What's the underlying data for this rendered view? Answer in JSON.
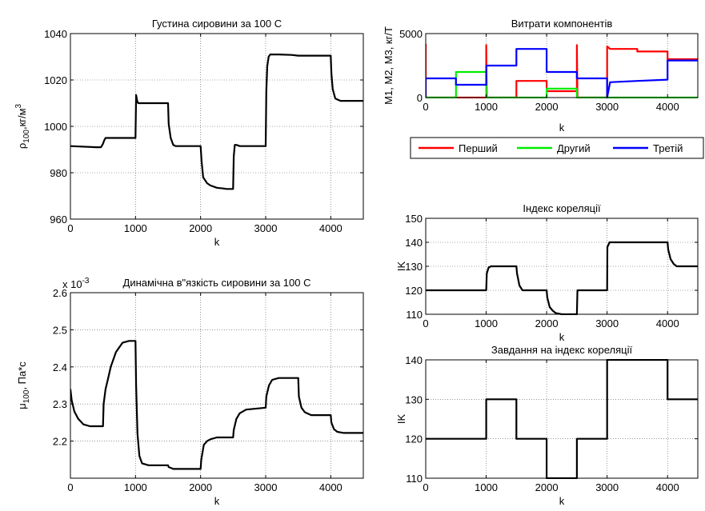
{
  "chart_data": [
    {
      "id": "density",
      "type": "line",
      "title": "Густина сировини за 100 С",
      "xlabel": "k",
      "ylabel": "ρ",
      "ylabel_sub": "100",
      "ylabel_rest": ",кг/м",
      "ylabel_sup": "3",
      "xlim": [
        0,
        4500
      ],
      "ylim": [
        960,
        1040
      ],
      "xticks": [
        0,
        1000,
        2000,
        3000,
        4000
      ],
      "yticks": [
        960,
        980,
        1000,
        1020,
        1040
      ],
      "grid": true,
      "series": [
        {
          "color": "#000000",
          "x": [
            0,
            400,
            470,
            500,
            520,
            540,
            1000,
            1010,
            1025,
            1040,
            1080,
            1500,
            1510,
            1540,
            1580,
            1620,
            2000,
            2015,
            2040,
            2100,
            2150,
            2250,
            2350,
            2400,
            2500,
            2510,
            2525,
            2550,
            2600,
            3000,
            3010,
            3025,
            3045,
            3070,
            3100,
            3200,
            3400,
            3500,
            3600,
            4000,
            4010,
            4030,
            4070,
            4150,
            4500
          ],
          "y": [
            991.5,
            991.0,
            991.0,
            992.5,
            994,
            995,
            995,
            1013.5,
            1011,
            1010,
            1010,
            1010,
            1001,
            995,
            992,
            991.5,
            991.5,
            985,
            978,
            975.5,
            974.5,
            973.5,
            973.2,
            973,
            973,
            987,
            992,
            992,
            991.5,
            991.5,
            1015,
            1026,
            1030,
            1031,
            1031,
            1031,
            1030.8,
            1030.5,
            1030.5,
            1030.5,
            1023,
            1016,
            1012,
            1011,
            1011
          ]
        }
      ]
    },
    {
      "id": "viscosity",
      "type": "line",
      "title": "Динамічна в\"язкість сировини за 100 С",
      "exponent_label": "x 10",
      "exponent_sup": "-3",
      "xlabel": "k",
      "ylabel": "μ",
      "ylabel_sub": "100",
      "ylabel_rest": ", Па*с",
      "xlim": [
        0,
        4500
      ],
      "ylim": [
        2.1,
        2.6
      ],
      "xticks": [
        0,
        1000,
        2000,
        3000,
        4000
      ],
      "yticks": [
        2.2,
        2.3,
        2.4,
        2.5,
        2.6
      ],
      "ytick_labels": [
        "2.2",
        "2.3",
        "2.4",
        "2.5",
        "2.6"
      ],
      "grid": true,
      "series": [
        {
          "color": "#000000",
          "x": [
            0,
            20,
            60,
            120,
            200,
            300,
            500,
            510,
            540,
            580,
            620,
            700,
            800,
            900,
            1000,
            1010,
            1030,
            1060,
            1100,
            1200,
            1500,
            1510,
            1540,
            1580,
            2000,
            2010,
            2050,
            2100,
            2150,
            2250,
            2500,
            2510,
            2550,
            2600,
            2700,
            3000,
            3010,
            3050,
            3100,
            3200,
            3500,
            3510,
            3550,
            3600,
            3700,
            4000,
            4010,
            4050,
            4100,
            4200,
            4500
          ],
          "y": [
            2.34,
            2.31,
            2.28,
            2.26,
            2.245,
            2.24,
            2.24,
            2.3,
            2.34,
            2.37,
            2.4,
            2.44,
            2.465,
            2.47,
            2.47,
            2.35,
            2.22,
            2.16,
            2.14,
            2.135,
            2.135,
            2.13,
            2.128,
            2.125,
            2.125,
            2.15,
            2.19,
            2.2,
            2.205,
            2.21,
            2.21,
            2.23,
            2.26,
            2.275,
            2.285,
            2.29,
            2.32,
            2.35,
            2.365,
            2.37,
            2.37,
            2.32,
            2.29,
            2.278,
            2.27,
            2.27,
            2.25,
            2.232,
            2.225,
            2.222,
            2.222
          ]
        }
      ]
    },
    {
      "id": "components",
      "type": "line",
      "title": "Витрати компонентів",
      "xlabel": "k",
      "ylabel": "M1, M2, M3, кг/Т",
      "xlim": [
        0,
        4500
      ],
      "ylim": [
        0,
        5000
      ],
      "xticks": [
        0,
        1000,
        2000,
        3000,
        4000
      ],
      "yticks": [
        0,
        5000
      ],
      "grid": true,
      "legend_position": "below",
      "series": [
        {
          "name": "Перший",
          "color": "#ff0000",
          "x": [
            0,
            0,
            10,
            990,
            1000,
            1000,
            1010,
            1490,
            1500,
            1500,
            1990,
            2000,
            2000,
            2490,
            2500,
            2500,
            2510,
            2990,
            3000,
            3000,
            3050,
            3500,
            3500,
            4000,
            4000,
            4500
          ],
          "y": [
            4200,
            0,
            0,
            0,
            0,
            4100,
            0,
            0,
            0,
            1300,
            1300,
            1300,
            500,
            500,
            500,
            4100,
            0,
            0,
            0,
            4000,
            3800,
            3800,
            3600,
            3600,
            3000,
            3000
          ]
        },
        {
          "name": "Другий",
          "color": "#00ee00",
          "x": [
            0,
            500,
            500,
            1000,
            1000,
            2000,
            2000,
            2500,
            2500,
            4500
          ],
          "y": [
            0,
            0,
            2000,
            2000,
            0,
            0,
            700,
            700,
            0,
            0
          ]
        },
        {
          "name": "Третій",
          "color": "#0000ff",
          "x": [
            0,
            0,
            500,
            500,
            1000,
            1000,
            1500,
            1500,
            2000,
            2000,
            2500,
            2500,
            3000,
            3000,
            3050,
            3500,
            3500,
            4000,
            4000,
            4500
          ],
          "y": [
            0,
            1500,
            1500,
            1000,
            1000,
            2500,
            2500,
            3800,
            3800,
            2000,
            2000,
            1500,
            1500,
            0,
            1200,
            1300,
            1300,
            1400,
            2900,
            2900
          ]
        }
      ]
    },
    {
      "id": "correlation",
      "type": "line",
      "title": "Індекс кореляції",
      "xlabel": "k",
      "ylabel": "IK",
      "xlim": [
        0,
        4500
      ],
      "ylim": [
        110,
        150
      ],
      "xticks": [
        0,
        1000,
        2000,
        3000,
        4000
      ],
      "yticks": [
        110,
        120,
        130,
        140,
        150
      ],
      "grid": true,
      "series": [
        {
          "color": "#000000",
          "x": [
            0,
            1000,
            1010,
            1040,
            1080,
            1500,
            1510,
            1550,
            1600,
            2000,
            2010,
            2050,
            2100,
            2150,
            2250,
            2500,
            2510,
            2600,
            3000,
            3005,
            3040,
            3080,
            4000,
            4010,
            4050,
            4100,
            4150,
            4500
          ],
          "y": [
            120,
            120,
            127,
            129.5,
            130,
            130,
            127,
            122,
            120,
            120,
            117,
            113,
            111.5,
            110.5,
            110,
            110,
            120,
            120,
            120,
            138,
            140,
            140,
            140,
            137,
            133,
            131,
            130,
            130
          ]
        }
      ]
    },
    {
      "id": "correlation_task",
      "type": "line",
      "title": "Завдання на індекс кореляції",
      "xlabel": "k",
      "ylabel": "IK",
      "xlim": [
        0,
        4500
      ],
      "ylim": [
        110,
        140
      ],
      "xticks": [
        0,
        1000,
        2000,
        3000,
        4000
      ],
      "yticks": [
        110,
        120,
        130,
        140
      ],
      "grid": true,
      "series": [
        {
          "color": "#000000",
          "x": [
            0,
            1000,
            1000,
            1500,
            1500,
            2000,
            2000,
            2500,
            2500,
            3000,
            3000,
            4000,
            4000,
            4500
          ],
          "y": [
            120,
            120,
            130,
            130,
            120,
            120,
            110,
            110,
            120,
            120,
            140,
            140,
            130,
            130
          ]
        }
      ]
    }
  ]
}
